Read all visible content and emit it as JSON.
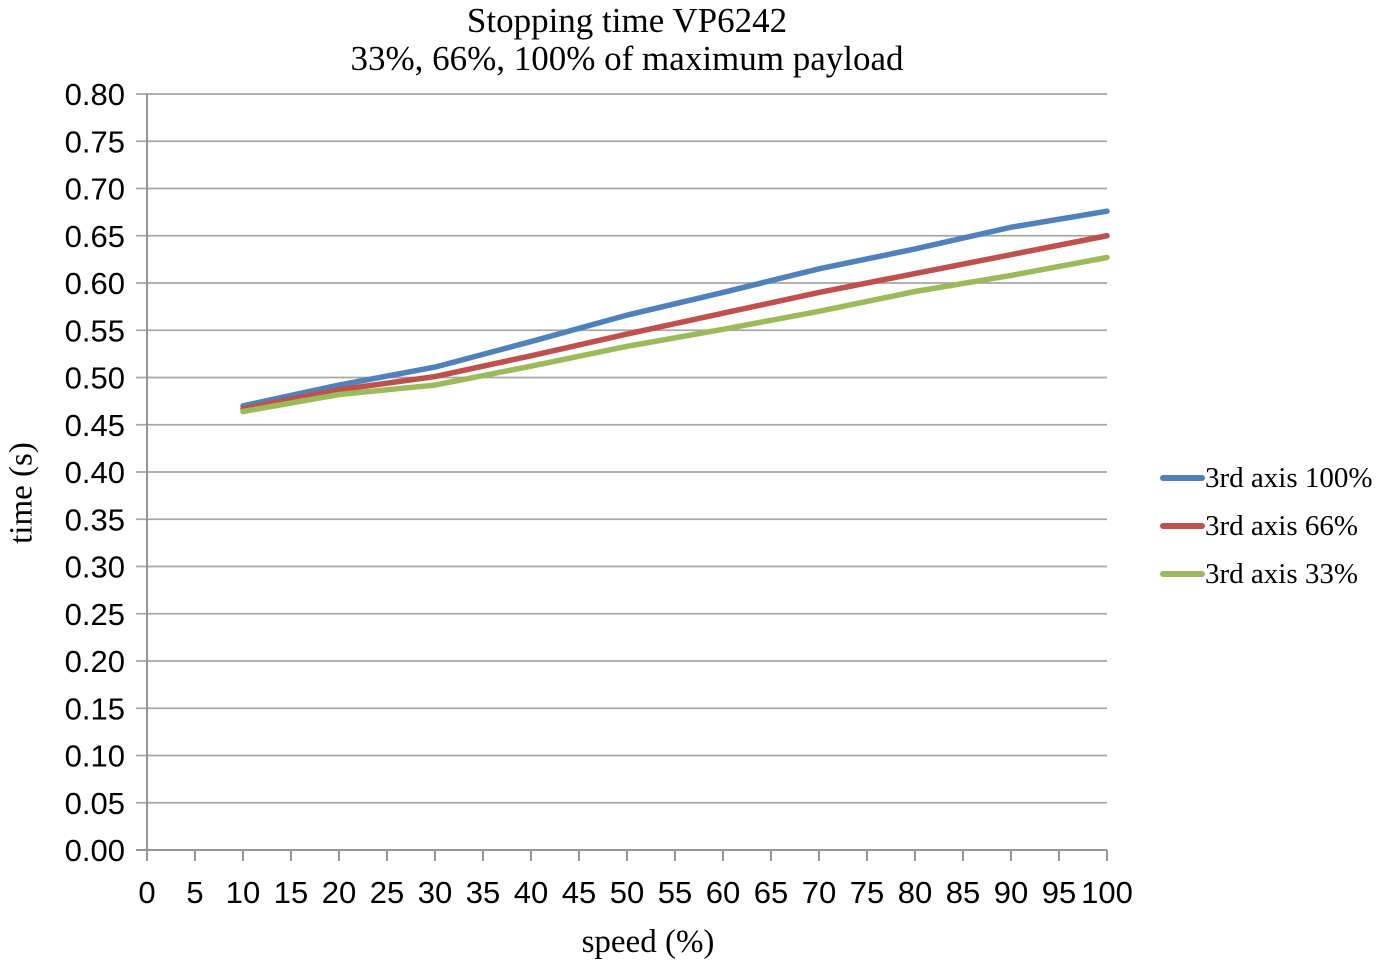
{
  "chart_data": {
    "type": "line",
    "title": "Stopping time VP6242",
    "subtitle": "33%, 66%, 100% of maximum payload",
    "xlabel": "speed (%)",
    "ylabel": "time (s)",
    "xlim": [
      0,
      100
    ],
    "x_tick_step": 5,
    "ylim": [
      0.0,
      0.8
    ],
    "y_tick_step": 0.05,
    "y_tick_decimals": 2,
    "grid": "horizontal-only",
    "legend_position": "right",
    "grid_color": "#A6A6A6",
    "axis_color": "#969696",
    "text_color": "#000000",
    "x": [
      10,
      20,
      30,
      40,
      50,
      60,
      70,
      80,
      90,
      100
    ],
    "series": [
      {
        "name": "3rd axis 100%",
        "color": "#4F81BD",
        "values": [
          0.47,
          0.492,
          0.511,
          0.538,
          0.566,
          0.59,
          0.615,
          0.636,
          0.659,
          0.676
        ]
      },
      {
        "name": "3rd axis 66%",
        "color": "#C0504D",
        "values": [
          0.467,
          0.487,
          0.501,
          0.523,
          0.546,
          0.568,
          0.59,
          0.61,
          0.63,
          0.65
        ]
      },
      {
        "name": "3rd axis 33%",
        "color": "#9BBB59",
        "values": [
          0.464,
          0.482,
          0.492,
          0.512,
          0.533,
          0.551,
          0.57,
          0.591,
          0.608,
          0.627
        ]
      }
    ]
  }
}
